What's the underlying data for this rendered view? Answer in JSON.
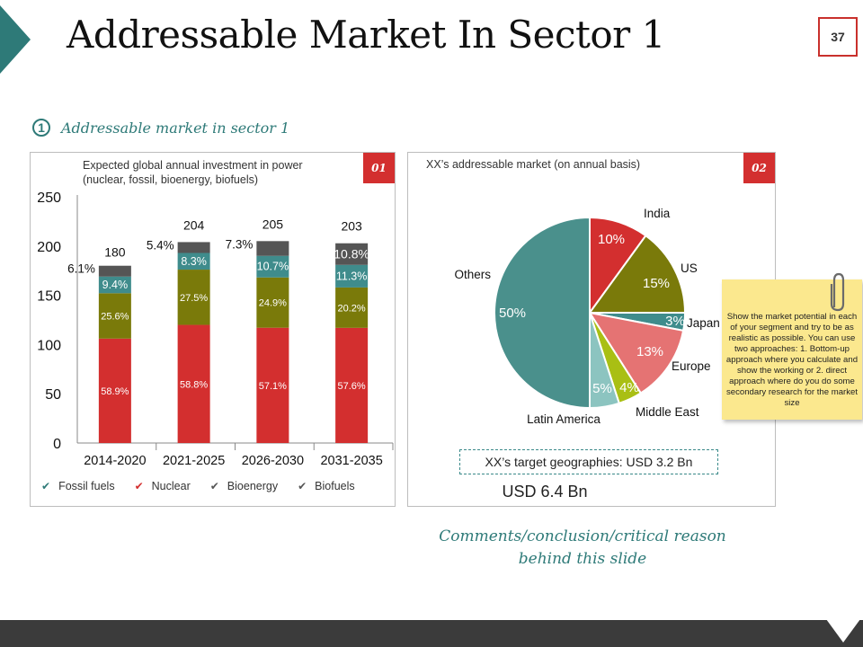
{
  "slide": {
    "title": "Addressable Market In Sector 1",
    "page_number": "37",
    "subtitle_number": "1",
    "subtitle": "Addressable market in sector 1",
    "conclusion_line1": "Comments/conclusion/critical reason",
    "conclusion_line2": "behind this slide"
  },
  "left_panel": {
    "badge": "01",
    "title_line1": "Expected global annual investment in power",
    "title_line2": "(nuclear, fossil, bioenergy, biofuels)"
  },
  "right_panel": {
    "badge": "02",
    "title": "XX’s addressable market (on annual basis)",
    "target_text": "XX’s target geographies: USD 3.2 Bn",
    "total_text": "USD 6.4 Bn"
  },
  "note": {
    "text": "Show the market potential in each of your segment and try to be as realistic as possible. You can use two approaches: 1. Bottom-up approach where you calculate and show the working or 2. direct approach where do you do some secondary research for the market size"
  },
  "chart_data": [
    {
      "type": "bar",
      "stacked": true,
      "title": "Expected global annual investment in power (nuclear, fossil, bioenergy, biofuels)",
      "categories": [
        "2014-2020",
        "2021-2025",
        "2026-2030",
        "2031-2035"
      ],
      "totals": [
        180,
        204,
        205,
        203
      ],
      "total_labels": [
        "180",
        "204",
        "205",
        "203"
      ],
      "ylim": [
        0,
        250
      ],
      "yticks": [
        0,
        50,
        100,
        150,
        200,
        250
      ],
      "series": [
        {
          "name": "Fossil fuels",
          "color": "#d32f2f",
          "shares": [
            58.9,
            58.8,
            57.1,
            57.6
          ],
          "labels": [
            "58.9%",
            "58.8%",
            "57.1%",
            "57.6%"
          ]
        },
        {
          "name": "Nuclear",
          "color": "#7a7a0a",
          "shares": [
            25.6,
            27.5,
            24.9,
            20.2
          ],
          "labels": [
            "25.6%",
            "27.5%",
            "24.9%",
            "20.2%"
          ]
        },
        {
          "name": "Bioenergy",
          "color": "#3f8c8c",
          "shares": [
            9.4,
            8.3,
            10.7,
            11.3
          ],
          "labels": [
            "9.4%",
            "8.3%",
            "10.7%",
            "11.3%"
          ]
        },
        {
          "name": "Biofuels",
          "color": "#555555",
          "shares": [
            6.1,
            5.4,
            7.3,
            10.8
          ],
          "labels": [
            "6.1%",
            "5.4%",
            "7.3%",
            "10.8%"
          ]
        }
      ],
      "legend": [
        {
          "label": "Fossil fuels",
          "color": "#2e7a78"
        },
        {
          "label": "Nuclear",
          "color": "#d32f2f"
        },
        {
          "label": "Bioenergy",
          "color": "#555555"
        },
        {
          "label": "Biofuels",
          "color": "#555555"
        }
      ]
    },
    {
      "type": "pie",
      "title": "XX’s addressable market (on annual basis)",
      "slices": [
        {
          "label": "India",
          "value": 10,
          "value_label": "10%",
          "color": "#d32f2f"
        },
        {
          "label": "US",
          "value": 15,
          "value_label": "15%",
          "color": "#7a7a0a"
        },
        {
          "label": "Japan",
          "value": 3,
          "value_label": "3%",
          "color": "#3f8c8c"
        },
        {
          "label": "Europe",
          "value": 13,
          "value_label": "13%",
          "color": "#e57373"
        },
        {
          "label": "Middle East",
          "value": 4,
          "value_label": "4%",
          "color": "#a9bf14"
        },
        {
          "label": "Latin America",
          "value": 5,
          "value_label": "5%",
          "color": "#8cc4c0"
        },
        {
          "label": "Others",
          "value": 50,
          "value_label": "50%",
          "color": "#4a908c"
        }
      ]
    }
  ]
}
